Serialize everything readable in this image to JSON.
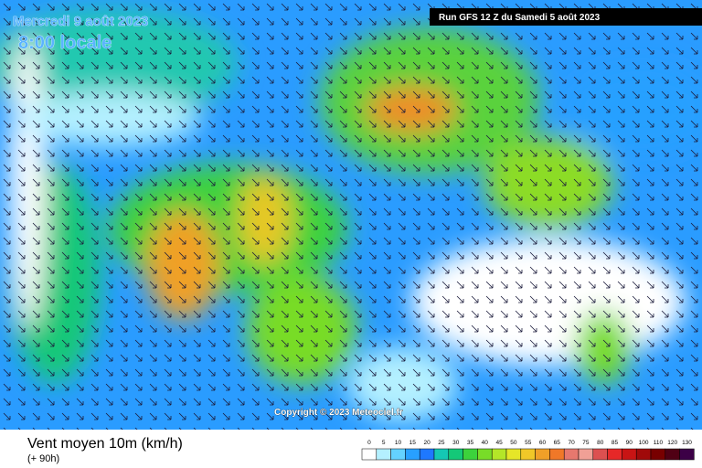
{
  "header": {
    "date": "Mercredi 9 août 2023",
    "time": "8:00 locale",
    "run": "Run GFS 12 Z du Samedi 5 août 2023"
  },
  "copyright": "Copyright © 2023 Meteociel.fr",
  "footer": {
    "title": "Vent moyen 10m (km/h)",
    "lead": "(+ 90h)"
  },
  "legend": {
    "labels": [
      0,
      5,
      10,
      15,
      20,
      25,
      30,
      35,
      40,
      45,
      50,
      55,
      60,
      65,
      70,
      75,
      80,
      85,
      90,
      100,
      110,
      120,
      130
    ],
    "colors": [
      "#ffffff",
      "#b4f0ff",
      "#64d2ff",
      "#28a0ff",
      "#1e78ff",
      "#14c8b4",
      "#14c878",
      "#3cd23c",
      "#78dc28",
      "#b4e628",
      "#e6e628",
      "#f0c828",
      "#f0a028",
      "#f07828",
      "#e6786e",
      "#f0a096",
      "#dc5050",
      "#e62828",
      "#c81414",
      "#a00a0a",
      "#780000",
      "#500014",
      "#3c0046"
    ]
  }
}
